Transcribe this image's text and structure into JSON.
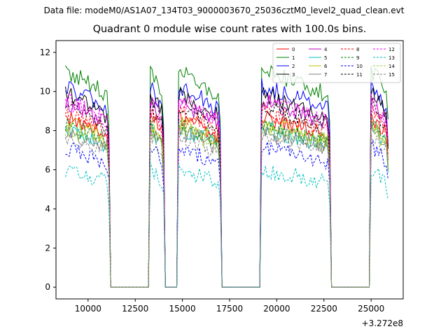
{
  "suptitle": "Data file: modeM0/AS1A07_134T03_9000003670_25036cztM0_level2_quad_clean.evt",
  "chart_data": {
    "type": "line",
    "title": "Quadrant 0 module wise count rates with 100.0s bins.",
    "xlabel": "",
    "ylabel": "",
    "x_offset_label": "+3.272e8",
    "xlim": [
      8300,
      26700
    ],
    "ylim": [
      -0.6,
      12.6
    ],
    "x_ticks": [
      10000,
      12500,
      15000,
      17500,
      20000,
      22500,
      25000
    ],
    "x_tick_labels": [
      "10000",
      "12500",
      "15000",
      "17500",
      "20000",
      "22500",
      "25000"
    ],
    "y_ticks": [
      0,
      2,
      4,
      6,
      8,
      10,
      12
    ],
    "y_tick_labels": [
      "0",
      "2",
      "4",
      "6",
      "8",
      "10",
      "12"
    ],
    "grid": false,
    "legend_position": "top-right",
    "active_intervals": [
      [
        8800,
        11100
      ],
      [
        13300,
        14000
      ],
      [
        14800,
        17000
      ],
      [
        19200,
        22800
      ],
      [
        25000,
        25900
      ]
    ],
    "series": [
      {
        "name": "0",
        "color": "#ff0000",
        "dash": "solid",
        "level": 8.6
      },
      {
        "name": "1",
        "color": "#008000",
        "dash": "solid",
        "level": 10.9
      },
      {
        "name": "2",
        "color": "#0000ff",
        "dash": "solid",
        "level": 10.1
      },
      {
        "name": "3",
        "color": "#000000",
        "dash": "solid",
        "level": 9.7
      },
      {
        "name": "4",
        "color": "#bf00bf",
        "dash": "solid",
        "level": 9.3
      },
      {
        "name": "5",
        "color": "#00bfbf",
        "dash": "solid",
        "level": 8.0
      },
      {
        "name": "6",
        "color": "#bfbf00",
        "dash": "solid",
        "level": 8.3
      },
      {
        "name": "7",
        "color": "#808080",
        "dash": "solid",
        "level": 7.9
      },
      {
        "name": "8",
        "color": "#ff0000",
        "dash": "dashed",
        "level": 8.8
      },
      {
        "name": "9",
        "color": "#008000",
        "dash": "dashed",
        "level": 8.2
      },
      {
        "name": "10",
        "color": "#0000ff",
        "dash": "dashed",
        "level": 7.0
      },
      {
        "name": "11",
        "color": "#000000",
        "dash": "dashed",
        "level": 9.1
      },
      {
        "name": "12",
        "color": "#ff00ff",
        "dash": "dashed",
        "level": 9.4
      },
      {
        "name": "13",
        "color": "#00bfbf",
        "dash": "dashed",
        "level": 5.9
      },
      {
        "name": "14",
        "color": "#9acd32",
        "dash": "dashed",
        "level": 8.0
      },
      {
        "name": "15",
        "color": "#808080",
        "dash": "dashed",
        "level": 7.6
      }
    ]
  }
}
